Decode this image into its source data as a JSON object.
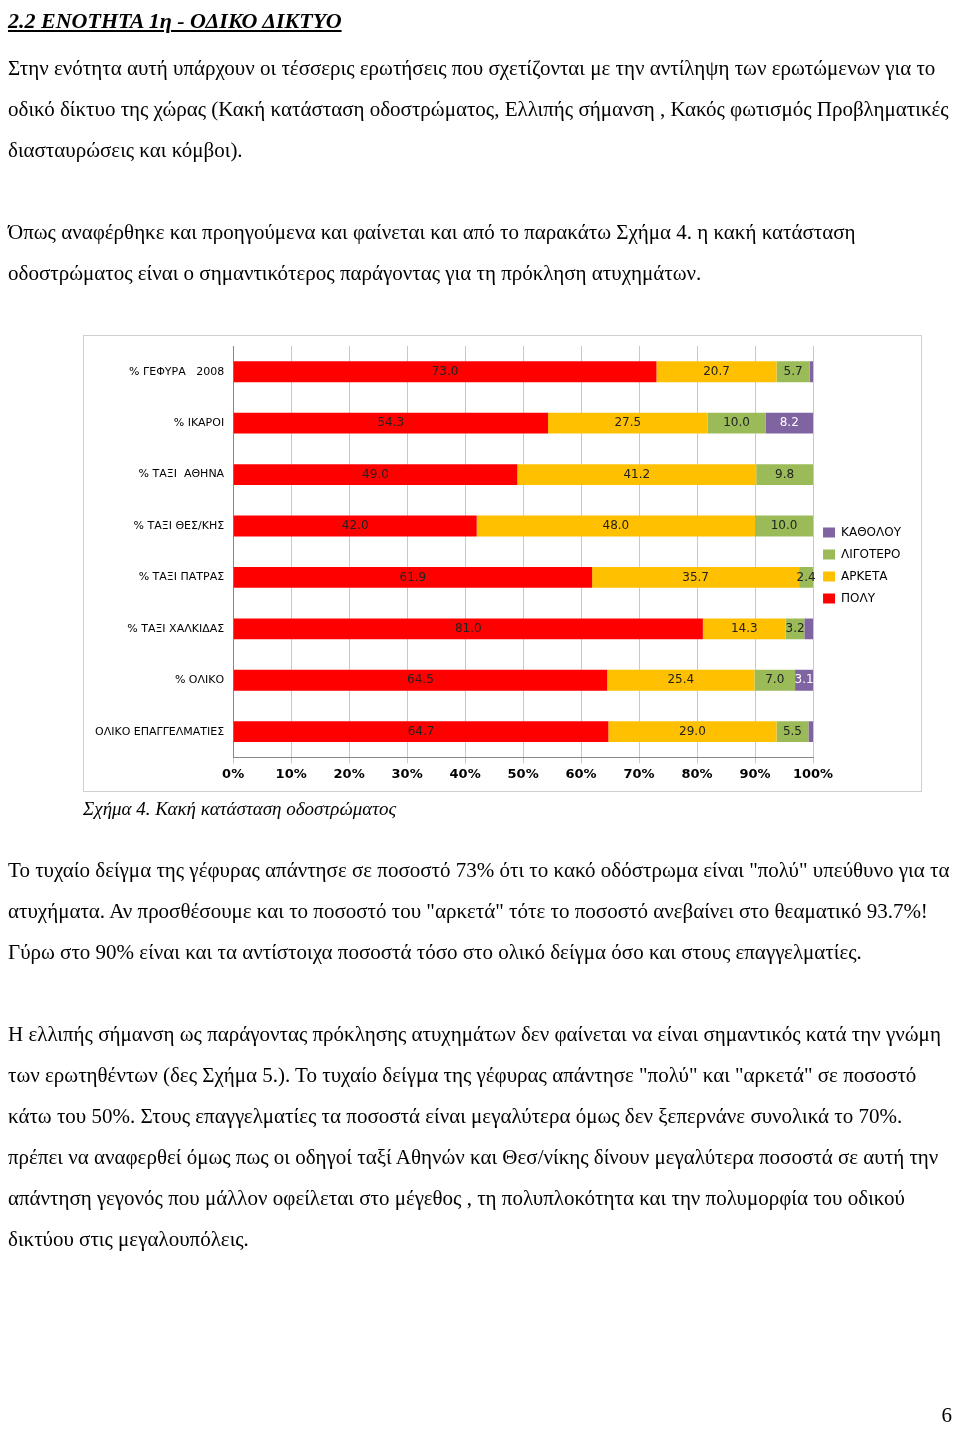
{
  "chart_data": {
    "type": "bar",
    "orientation": "horizontal",
    "stacked": true,
    "title": "2.2 ΕΝΟΤΗΤΑ 1η - ΟΔΙΚΟ ΔΙΚΤΥΟ",
    "annotations": [
      "Στην ενότητα αυτή υπάρχουν οι τέσσερις ερωτήσεις που σχετίζονται με την αντίληψη των ερωτώμενων για το οδικό δίκτυο της χώρας (Κακή κατάσταση οδοστρώματος, Ελλιπής σήμανση , Κακός φωτισμός Προβληματικές διασταυρώσεις και κόμβοι).",
      "Όπως αναφέρθηκε και προηγούμενα και φαίνεται και από το παρακάτω Σχήμα 4. η κακή κατάσταση οδοστρώματος είναι ο σημαντικότερος παράγοντας για τη πρόκληση ατυχημάτων.",
      "Σχήμα 4. Κακή κατάσταση οδοστρώματος",
      "Το τυχαίο δείγμα της γέφυρας απάντησε σε ποσοστό 73% ότι το κακό οδόστρωμα είναι \"πολύ\" υπεύθυνο για τα ατυχήματα. Αν προσθέσουμε και το ποσοστό του \"αρκετά\" τότε το ποσοστό ανεβαίνει στο θεαματικό 93.7%! Γύρω στο 90% είναι και τα αντίστοιχα ποσοστά τόσο στο ολικό δείγμα όσο και στους επαγγελματίες.",
      "Η ελλιπής σήμανση ως παράγοντας πρόκλησης ατυχημάτων δεν φαίνεται να είναι σημαντικός κατά την γνώμη των ερωτηθέντων (δες Σχήμα 5.). Το τυχαίο δείγμα της γέφυρας απάντησε \"πολύ\" και \"αρκετά\" σε ποσοστό κάτω του 50%. Στους επαγγελματίες τα ποσοστά είναι μεγαλύτερα όμως δεν ξεπερνάνε συνολικά το 70%. πρέπει να αναφερθεί όμως πως  οι οδηγοί ταξί Αθηνών και Θεσ/νίκης δίνουν μεγαλύτερα ποσοστά σε αυτή την απάντηση γεγονός που μάλλον οφείλεται στο μέγεθος , τη πολυπλοκότητα και την πολυμορφία του οδικού δικτύου στις μεγαλουπόλεις.",
      "6"
    ],
    "categories": [
      "% ΓΕΦΥΡΑ   2008",
      "% ΙΚΑΡΟΙ",
      "% ΤΑΞΙ  ΑΘΗΝΑ",
      "% ΤΑΞΙ ΘΕΣ/ΚΗΣ",
      "% ΤΑΞΙ ΠΑΤΡΑΣ",
      "% ΤΑΞΙ ΧΑΛΚΙΔΑΣ",
      "% ΟΛΙΚΟ",
      "ΟΛΙΚΟ ΕΠΑΓΓΕΛΜΑΤΙΕΣ"
    ],
    "series": [
      {
        "name": "ΠΟΛΥ",
        "color": "#ff0000",
        "values": [
          73.0,
          54.3,
          49.0,
          42.0,
          61.9,
          81.0,
          64.5,
          64.7
        ],
        "value_labels": [
          "73.0",
          "54.3",
          "49.0",
          "42.0",
          "61.9",
          "81.0",
          "64.5",
          "64.7"
        ]
      },
      {
        "name": "ΑΡΚΕΤΑ",
        "color": "#ffc000",
        "values": [
          20.7,
          27.5,
          41.2,
          48.0,
          35.7,
          14.3,
          25.4,
          29.0
        ],
        "value_labels": [
          "20.7",
          "27.5",
          "41.2",
          "48.0",
          "35.7",
          "14.3",
          "25.4",
          "29.0"
        ]
      },
      {
        "name": "ΛΙΓΟΤΕΡΟ",
        "color": "#9bbb59",
        "values": [
          5.7,
          10.0,
          9.8,
          10.0,
          2.4,
          3.2,
          7.0,
          5.5
        ],
        "value_labels": [
          "5.7",
          "10.0",
          "9.8",
          "10.0",
          "2.4",
          "3.2",
          "7.0",
          "5.5"
        ]
      },
      {
        "name": "ΚΑΘΟΛΟΥ",
        "color": "#8064a2",
        "values": [
          0.6,
          8.2,
          null,
          null,
          null,
          1.5,
          3.1,
          0.8
        ],
        "value_labels": [
          null,
          "8.2",
          null,
          null,
          null,
          null,
          "3.1",
          null
        ]
      }
    ],
    "xlim": [
      0,
      100
    ],
    "xticks": [
      {
        "value": 0,
        "label": "0%"
      },
      {
        "value": 10,
        "label": "10%"
      },
      {
        "value": 20,
        "label": "20%"
      },
      {
        "value": 30,
        "label": "30%"
      },
      {
        "value": 40,
        "label": "40%"
      },
      {
        "value": 50,
        "label": "50%"
      },
      {
        "value": 60,
        "label": "60%"
      },
      {
        "value": 70,
        "label": "70%"
      },
      {
        "value": 80,
        "label": "80%"
      },
      {
        "value": 90,
        "label": "90%"
      },
      {
        "value": 100,
        "label": "100%"
      }
    ],
    "grid": "x",
    "legend": "right"
  }
}
